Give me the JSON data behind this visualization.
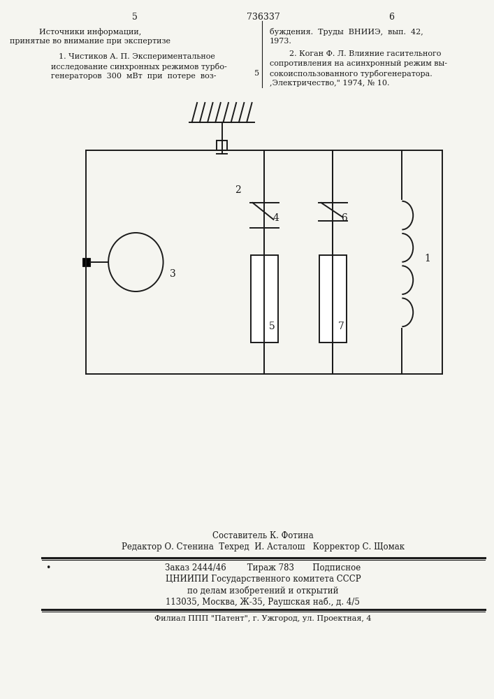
{
  "page_number_left": "5",
  "page_number_right": "6",
  "patent_number": "736337",
  "bg_color": "#f5f5f0",
  "line_color": "#1a1a1a",
  "text_color": "#1a1a1a",
  "bottom_composer": "Составитель К. Фотина",
  "bottom_editor": "Редактор О. Стенина  Техред  И. Асталош   Корректор С. Щомак",
  "bottom_order": "Заказ 2444/46        Тираж 783       Подписное",
  "bottom_institute1": "ЦНИИПИ Государственного комитета СССР",
  "bottom_institute2": "по делам изобретений и открытий",
  "bottom_address": "113035, Москва, Ж-35, Раушская наб., д. 4/5",
  "bottom_branch": "Филиал ППП \"Патент\", г. Ужгород, ул. Проектная, 4"
}
